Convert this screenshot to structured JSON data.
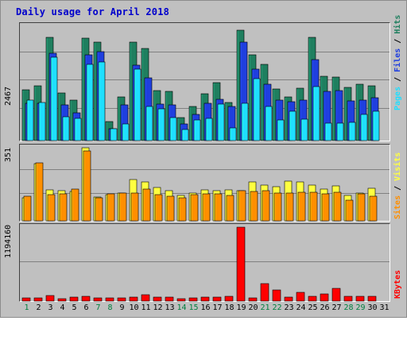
{
  "title": "Daily usage for April 2018",
  "colors": {
    "hits": "#1f7f5f",
    "files": "#1f3fdf",
    "pages": "#1fdfff",
    "visits": "#ffff3f",
    "sites": "#ff8f00",
    "kbytes": "#ff0000",
    "weekend_label": "#007f3f",
    "background": "#c0c0c0",
    "title": "#0000cc"
  },
  "chart_data": [
    {
      "type": "bar",
      "title": "Daily usage for April 2018",
      "categories": [
        "1",
        "2",
        "3",
        "4",
        "5",
        "6",
        "7",
        "8",
        "9",
        "10",
        "11",
        "12",
        "13",
        "14",
        "15",
        "16",
        "17",
        "18",
        "19",
        "20",
        "21",
        "22",
        "23",
        "24",
        "25",
        "26",
        "27",
        "28",
        "29",
        "30",
        "31"
      ],
      "y_max_label": "2467",
      "ylim": [
        0,
        2467
      ],
      "legend": [
        "Pages",
        "Files",
        "Hits"
      ],
      "series": [
        {
          "name": "Hits",
          "values": [
            1120,
            1200,
            2260,
            1050,
            880,
            2240,
            2160,
            420,
            950,
            2160,
            2020,
            1090,
            1080,
            500,
            740,
            1020,
            1260,
            840,
            2420,
            1880,
            1660,
            1130,
            960,
            1140,
            2250,
            1400,
            1390,
            1160,
            1240,
            1200,
            0
          ]
        },
        {
          "name": "Files",
          "values": [
            820,
            820,
            1910,
            780,
            610,
            1880,
            1940,
            260,
            780,
            1650,
            1380,
            800,
            780,
            370,
            580,
            810,
            910,
            740,
            2150,
            1560,
            1240,
            880,
            850,
            880,
            1780,
            1070,
            1100,
            860,
            880,
            940,
            0
          ]
        },
        {
          "name": "Pages",
          "values": [
            880,
            840,
            1830,
            520,
            480,
            1670,
            1720,
            260,
            360,
            1560,
            740,
            690,
            510,
            250,
            450,
            480,
            800,
            280,
            810,
            1350,
            740,
            460,
            650,
            470,
            1190,
            380,
            380,
            400,
            580,
            650,
            0
          ]
        }
      ]
    },
    {
      "type": "bar",
      "categories": [
        "1",
        "2",
        "3",
        "4",
        "5",
        "6",
        "7",
        "8",
        "9",
        "10",
        "11",
        "12",
        "13",
        "14",
        "15",
        "16",
        "17",
        "18",
        "19",
        "20",
        "21",
        "22",
        "23",
        "24",
        "25",
        "26",
        "27",
        "28",
        "29",
        "30",
        "31"
      ],
      "y_max_label": "351",
      "ylim": [
        0,
        351
      ],
      "legend": [
        "Sites",
        "Visits"
      ],
      "series": [
        {
          "name": "Visits",
          "values": [
            109,
            276,
            148,
            146,
            143,
            351,
            114,
            127,
            134,
            198,
            186,
            160,
            146,
            123,
            133,
            150,
            144,
            149,
            145,
            186,
            173,
            163,
            189,
            188,
            173,
            154,
            166,
            123,
            133,
            155,
            0
          ]
        },
        {
          "name": "Sites",
          "values": [
            118,
            280,
            126,
            130,
            154,
            337,
            110,
            130,
            132,
            134,
            152,
            124,
            118,
            110,
            127,
            128,
            129,
            121,
            144,
            140,
            144,
            132,
            134,
            139,
            136,
            129,
            136,
            100,
            128,
            119,
            0
          ]
        }
      ]
    },
    {
      "type": "bar",
      "categories": [
        "1",
        "2",
        "3",
        "4",
        "5",
        "6",
        "7",
        "8",
        "9",
        "10",
        "11",
        "12",
        "13",
        "14",
        "15",
        "16",
        "17",
        "18",
        "19",
        "20",
        "21",
        "22",
        "23",
        "24",
        "25",
        "26",
        "27",
        "28",
        "29",
        "30",
        "31"
      ],
      "y_max_label": "1194160",
      "ylim": [
        0,
        1194160
      ],
      "legend": [
        "KBytes"
      ],
      "series": [
        {
          "name": "KBytes",
          "values": [
            50000,
            55000,
            96000,
            42000,
            62000,
            80000,
            50000,
            55000,
            52000,
            60000,
            100000,
            70000,
            62000,
            35000,
            55000,
            60000,
            65000,
            75000,
            1194160,
            55000,
            280000,
            175000,
            70000,
            140000,
            80000,
            110000,
            200000,
            75000,
            80000,
            82000,
            0
          ]
        }
      ]
    }
  ],
  "x_labels": [
    {
      "d": "1",
      "we": true
    },
    {
      "d": "2",
      "we": false
    },
    {
      "d": "3",
      "we": false
    },
    {
      "d": "4",
      "we": false
    },
    {
      "d": "5",
      "we": false
    },
    {
      "d": "6",
      "we": false
    },
    {
      "d": "7",
      "we": true
    },
    {
      "d": "8",
      "we": true
    },
    {
      "d": "9",
      "we": false
    },
    {
      "d": "10",
      "we": false
    },
    {
      "d": "11",
      "we": false
    },
    {
      "d": "12",
      "we": false
    },
    {
      "d": "13",
      "we": false
    },
    {
      "d": "14",
      "we": true
    },
    {
      "d": "15",
      "we": true
    },
    {
      "d": "16",
      "we": false
    },
    {
      "d": "17",
      "we": false
    },
    {
      "d": "18",
      "we": false
    },
    {
      "d": "19",
      "we": false
    },
    {
      "d": "20",
      "we": false
    },
    {
      "d": "21",
      "we": true
    },
    {
      "d": "22",
      "we": true
    },
    {
      "d": "23",
      "we": false
    },
    {
      "d": "24",
      "we": false
    },
    {
      "d": "25",
      "we": false
    },
    {
      "d": "26",
      "we": false
    },
    {
      "d": "27",
      "we": false
    },
    {
      "d": "28",
      "we": true
    },
    {
      "d": "29",
      "we": true
    },
    {
      "d": "30",
      "we": false
    },
    {
      "d": "31",
      "we": false
    }
  ]
}
